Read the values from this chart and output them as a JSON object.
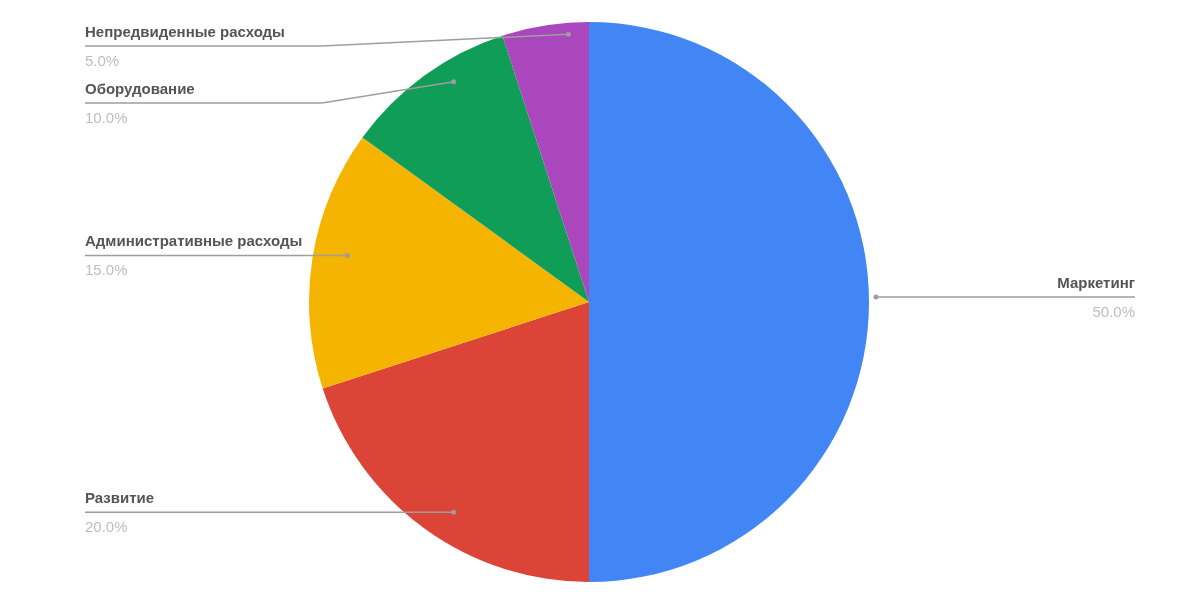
{
  "chart_data": {
    "type": "pie",
    "categories": [
      "Маркетинг",
      "Развитие",
      "Административные расходы",
      "Оборудование",
      "Непредвиденные расходы"
    ],
    "values": [
      50,
      20,
      15,
      10,
      5
    ],
    "colors": [
      "#4285f4",
      "#db4437",
      "#f4b400",
      "#0f9d58",
      "#ab47bc"
    ],
    "value_labels": [
      "50.0%",
      "20.0%",
      "15.0%",
      "10.0%",
      "5.0%"
    ]
  }
}
